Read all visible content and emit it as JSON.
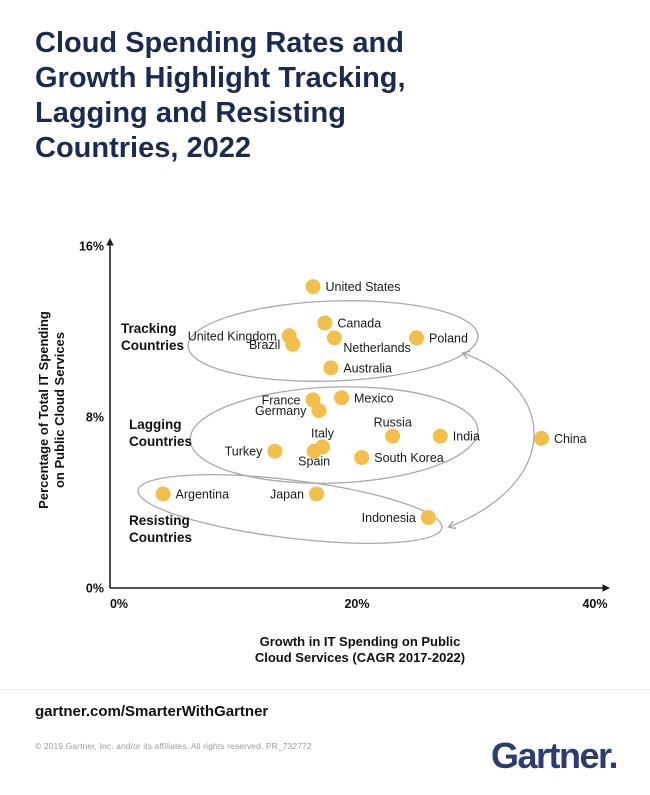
{
  "title": "Cloud Spending Rates and\nGrowth Highlight Tracking,\nLagging and Resisting\nCountries, 2022",
  "colors": {
    "title_navy": "#1b2a55",
    "logo_navy": "#2c3c6e",
    "dot_yellow": "#F2BF4B",
    "ellipse_gray": "#a5a9ad",
    "axis_black": "#1c1c1c",
    "label_black": "#1a1a1a"
  },
  "chart_data": {
    "type": "scatter",
    "xlabel": "Growth in IT Spending on Public Cloud Services (CAGR 2017-2022)",
    "ylabel": "Percentage of Total IT Spending on Public Cloud Services",
    "xlim": [
      0,
      40
    ],
    "ylim": [
      0,
      16
    ],
    "x_ticks": [
      "0%",
      "20%",
      "40%"
    ],
    "y_ticks": [
      "16%",
      "8%",
      "0%"
    ],
    "grid": false,
    "groups": [
      {
        "name": "Tracking Countries"
      },
      {
        "name": "Lagging Countries"
      },
      {
        "name": "Resisting Countries"
      }
    ],
    "annotation_arrow": {
      "type": "double-headed-curved-arrow",
      "connects": [
        "Tracking Countries ellipse",
        "Resisting Countries ellipse"
      ],
      "passes_through": "China"
    },
    "points": [
      {
        "country": "United States",
        "x": 16.3,
        "y": 14.1,
        "group": null,
        "label_side": "right"
      },
      {
        "country": "Canada",
        "x": 17.3,
        "y": 12.4,
        "group": "Tracking Countries",
        "label_side": "right"
      },
      {
        "country": "United Kingdom",
        "x": 14.3,
        "y": 11.8,
        "group": "Tracking Countries",
        "label_side": "left"
      },
      {
        "country": "Brazil",
        "x": 14.6,
        "y": 11.4,
        "group": "Tracking Countries",
        "label_side": "left"
      },
      {
        "country": "Netherlands",
        "x": 18.1,
        "y": 11.7,
        "group": "Tracking Countries",
        "label_side": "below-right"
      },
      {
        "country": "Poland",
        "x": 25.0,
        "y": 11.7,
        "group": "Tracking Countries",
        "label_side": "right"
      },
      {
        "country": "Australia",
        "x": 17.8,
        "y": 10.3,
        "group": "Tracking Countries",
        "label_side": "right"
      },
      {
        "country": "France",
        "x": 16.3,
        "y": 8.8,
        "group": "Lagging Countries",
        "label_side": "left"
      },
      {
        "country": "Germany",
        "x": 16.8,
        "y": 8.3,
        "group": "Lagging Countries",
        "label_side": "left"
      },
      {
        "country": "Mexico",
        "x": 18.7,
        "y": 8.9,
        "group": "Lagging Countries",
        "label_side": "right"
      },
      {
        "country": "Russia",
        "x": 23.0,
        "y": 7.1,
        "group": "Lagging Countries",
        "label_side": "above"
      },
      {
        "country": "India",
        "x": 27.0,
        "y": 7.1,
        "group": "Lagging Countries",
        "label_side": "right"
      },
      {
        "country": "Italy",
        "x": 17.1,
        "y": 6.6,
        "group": "Lagging Countries",
        "label_side": "above"
      },
      {
        "country": "Spain",
        "x": 16.4,
        "y": 6.4,
        "group": "Lagging Countries",
        "label_side": "below"
      },
      {
        "country": "Turkey",
        "x": 13.1,
        "y": 6.4,
        "group": "Lagging Countries",
        "label_side": "left"
      },
      {
        "country": "South Korea",
        "x": 20.4,
        "y": 6.1,
        "group": "Lagging Countries",
        "label_side": "right"
      },
      {
        "country": "China",
        "x": 35.5,
        "y": 7.0,
        "group": null,
        "label_side": "right"
      },
      {
        "country": "Argentina",
        "x": 3.7,
        "y": 4.4,
        "group": "Resisting Countries",
        "label_side": "right"
      },
      {
        "country": "Japan",
        "x": 16.6,
        "y": 4.4,
        "group": "Resisting Countries",
        "label_side": "left"
      },
      {
        "country": "Indonesia",
        "x": 26.0,
        "y": 3.3,
        "group": "Resisting Countries",
        "label_side": "left"
      }
    ]
  },
  "footer": {
    "link": "gartner.com/SmarterWithGartner",
    "copyright": "© 2019 Gartner, Inc. and/or its affiliates. All rights reserved. PR_732772",
    "logo": "Gartner."
  }
}
